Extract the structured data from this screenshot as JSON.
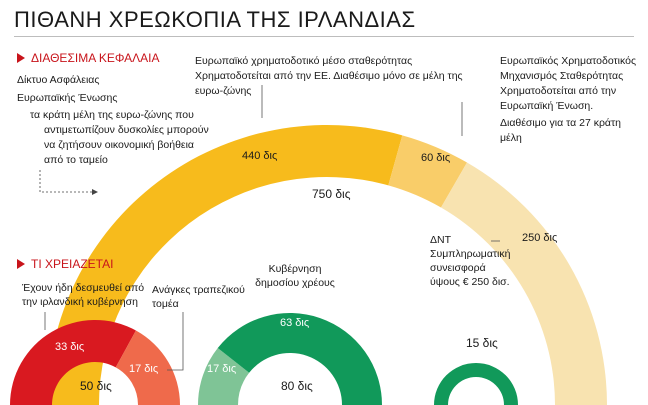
{
  "title": "ΠΙΘΑΝΗ ΧΡΕΩΚΟΠΙΑ ΤΗΣ ΙΡΛΑΝΔΙΑΣ",
  "sections": {
    "available": "ΔΙΑΘΕΣΙΜΑ ΚΕΦΑΛΑΙΑ",
    "needed": "ΤΙ ΧΡΕΙΑΖΕΤΑΙ"
  },
  "safety_net": {
    "lines": [
      "Δίκτυο Ασφάλειας",
      "Ευρωπαϊκής Ένωσης",
      "τα κράτη μέλη της ευρω-ζώνης που",
      "αντιμετωπίζουν δυσκολίες μπορούν",
      "να ζητήσουν οικονομική βοήθεια",
      "από το ταμείο"
    ]
  },
  "efsf": {
    "lines": [
      "Ευρωπαϊκό χρηματοδοτικό μέσο σταθερότητας",
      "Χρηματοδοτείται από την ΕΕ. Διαθέσιμο μόνο σε μέλη της",
      "ευρω-ζώνης"
    ],
    "value_label": "440 δις",
    "color": "#f7bb1c"
  },
  "efsm": {
    "lines": [
      "Ευρωπαϊκός Χρηματοδοτικός",
      "Μηχανισμός Σταθερότητας",
      "Χρηματοδοτείται από την",
      "Ευρωπαϊκή Ένωση.",
      "Διαθέσιμο για τα 27 κράτη",
      "μέλη"
    ],
    "value_label": "60 δις",
    "color": "#f9cd69"
  },
  "imf": {
    "lines": [
      "ΔΝΤ",
      "Συμπληρωματική",
      "συνεισφορά",
      "ύψους € 250 δισ."
    ],
    "value_label": "250 δις",
    "color": "#f8e3b0"
  },
  "total_available": "750 δις",
  "needed": {
    "guaranteed_text": [
      "Έχουν ήδη δεσμευθεί από",
      "την ιρλανδική κυβέρνηση"
    ],
    "banking_text": [
      "Ανάγκες τραπεζικού",
      "τομέα"
    ],
    "debt_text": [
      "Κυβέρνηση",
      "δημοσίου χρέους"
    ],
    "bank_red": {
      "value_label": "33 δις",
      "color": "#d91920"
    },
    "bank_salmon": {
      "value_label": "17 δις",
      "color": "#ef6a4b"
    },
    "bank_total": "50 δις",
    "green_light": {
      "value_label": "17 δις",
      "color": "#7fc496"
    },
    "green_dark": {
      "value_label": "63 δις",
      "color": "#11995a"
    },
    "green_total": "80 δις",
    "small_total": "15 δις",
    "small_color": "#11995a"
  },
  "chart_data": {
    "type": "diagram",
    "available_funds": [
      {
        "name": "Ευρωπαϊκό χρηματοδοτικό μέσο σταθερότητας",
        "value": 440
      },
      {
        "name": "Ευρωπαϊκός Χρηματοδοτικός Μηχανισμός Σταθερότητας",
        "value": 60
      },
      {
        "name": "ΔΝΤ",
        "value": 250
      }
    ],
    "available_total": 750,
    "needs": [
      {
        "group": "bank",
        "parts": [
          33,
          17
        ],
        "total": 50
      },
      {
        "group": "sovereign",
        "parts": [
          17,
          63
        ],
        "total": 80
      },
      {
        "group": "other",
        "parts": [
          15
        ],
        "total": 15
      }
    ]
  }
}
